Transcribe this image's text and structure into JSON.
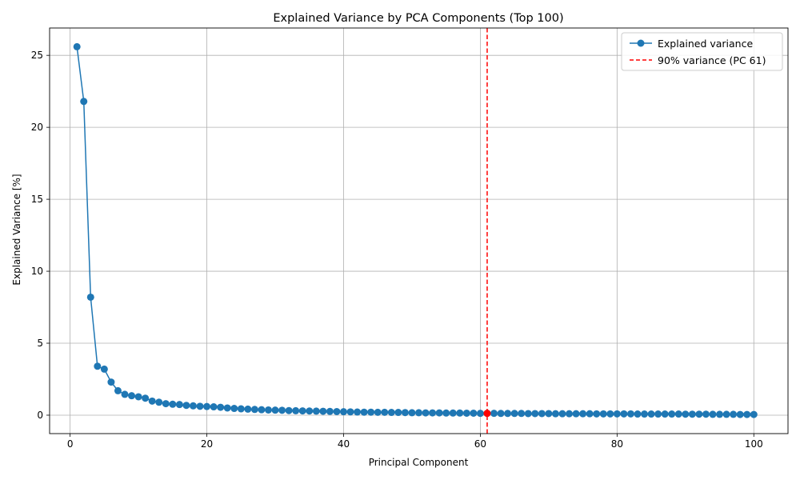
{
  "chart_data": {
    "type": "line",
    "title": "Explained Variance by PCA Components (Top 100)",
    "xlabel": "Principal Component",
    "ylabel": "Explained Variance [%]",
    "xlim": [
      -3,
      105
    ],
    "ylim": [
      -1.28,
      26.9
    ],
    "xticks": [
      0,
      20,
      40,
      60,
      80,
      100
    ],
    "yticks": [
      0,
      5,
      10,
      15,
      20,
      25
    ],
    "grid": true,
    "legend_position": "top-right",
    "series": [
      {
        "name": "Explained variance",
        "color": "#1f77b4",
        "marker": "circle",
        "x": [
          1,
          2,
          3,
          4,
          5,
          6,
          7,
          8,
          9,
          10,
          11,
          12,
          13,
          14,
          15,
          16,
          17,
          18,
          19,
          20,
          21,
          22,
          23,
          24,
          25,
          26,
          27,
          28,
          29,
          30,
          31,
          32,
          33,
          34,
          35,
          36,
          37,
          38,
          39,
          40,
          41,
          42,
          43,
          44,
          45,
          46,
          47,
          48,
          49,
          50,
          51,
          52,
          53,
          54,
          55,
          56,
          57,
          58,
          59,
          60,
          61,
          62,
          63,
          64,
          65,
          66,
          67,
          68,
          69,
          70,
          71,
          72,
          73,
          74,
          75,
          76,
          77,
          78,
          79,
          80,
          81,
          82,
          83,
          84,
          85,
          86,
          87,
          88,
          89,
          90,
          91,
          92,
          93,
          94,
          95,
          96,
          97,
          98,
          99,
          100
        ],
        "y": [
          25.6,
          21.8,
          8.2,
          3.4,
          3.2,
          2.3,
          1.7,
          1.45,
          1.35,
          1.28,
          1.18,
          0.98,
          0.9,
          0.8,
          0.76,
          0.74,
          0.68,
          0.65,
          0.62,
          0.6,
          0.58,
          0.55,
          0.5,
          0.47,
          0.44,
          0.42,
          0.4,
          0.38,
          0.36,
          0.35,
          0.34,
          0.32,
          0.31,
          0.3,
          0.29,
          0.28,
          0.27,
          0.26,
          0.25,
          0.24,
          0.23,
          0.22,
          0.21,
          0.21,
          0.2,
          0.2,
          0.19,
          0.19,
          0.18,
          0.17,
          0.17,
          0.16,
          0.16,
          0.16,
          0.15,
          0.15,
          0.15,
          0.14,
          0.14,
          0.13,
          0.13,
          0.13,
          0.12,
          0.12,
          0.12,
          0.12,
          0.11,
          0.11,
          0.11,
          0.11,
          0.1,
          0.1,
          0.1,
          0.1,
          0.1,
          0.1,
          0.09,
          0.09,
          0.09,
          0.09,
          0.09,
          0.09,
          0.08,
          0.08,
          0.08,
          0.08,
          0.08,
          0.08,
          0.08,
          0.07,
          0.07,
          0.07,
          0.07,
          0.06,
          0.06,
          0.06,
          0.06,
          0.05,
          0.05,
          0.05
        ]
      }
    ],
    "threshold": {
      "name": "90% variance (PC 61)",
      "x": 61,
      "y": 0.13,
      "color": "#ff0000",
      "style": "dashed"
    }
  }
}
